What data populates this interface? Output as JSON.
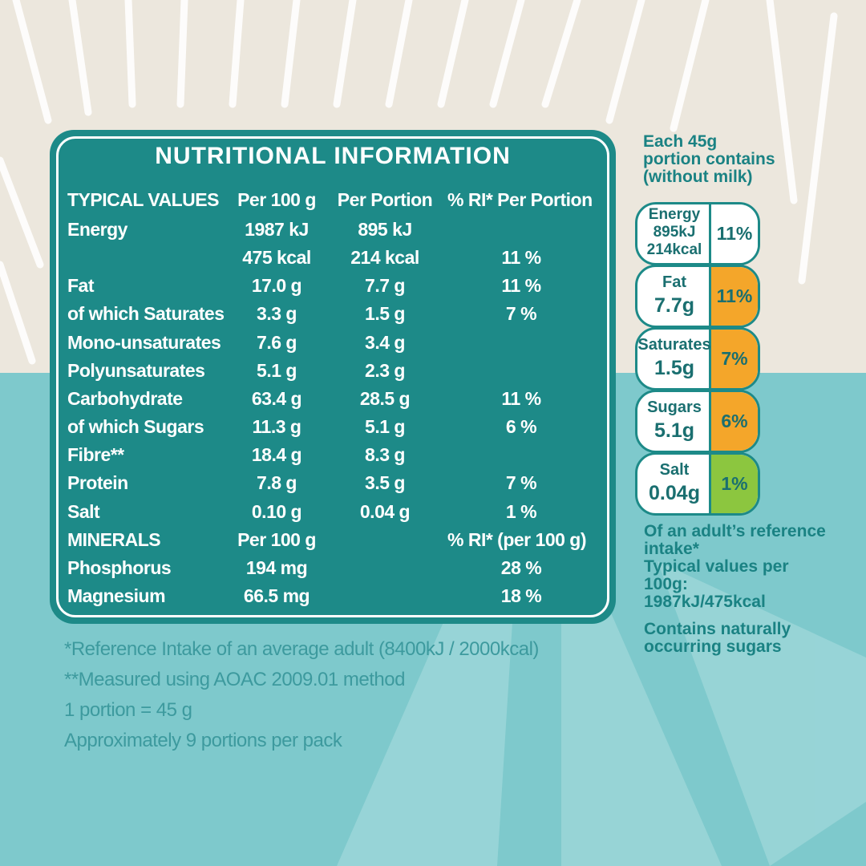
{
  "panel": {
    "title": "NUTRITIONAL INFORMATION",
    "header": [
      "TYPICAL VALUES",
      "Per 100 g",
      "Per Portion",
      "% RI* Per Portion"
    ],
    "rows": [
      {
        "label": "Energy",
        "per100": "1987 kJ",
        "portion": "895 kJ"
      },
      {
        "per100": "475 kcal",
        "portion": "214 kcal",
        "ri": "11 %"
      },
      {
        "label": "Fat",
        "per100": "17.0 g",
        "portion": "7.7 g",
        "ri": "11 %"
      },
      {
        "label": "of which Saturates",
        "per100": "3.3 g",
        "portion": "1.5 g",
        "ri": "7 %"
      },
      {
        "label": "Mono-unsaturates",
        "per100": "7.6 g",
        "portion": "3.4 g"
      },
      {
        "label": "Polyunsaturates",
        "per100": "5.1 g",
        "portion": "2.3 g"
      },
      {
        "label": "Carbohydrate",
        "per100": "63.4 g",
        "portion": "28.5 g",
        "ri": "11 %"
      },
      {
        "label": "of which Sugars",
        "per100": "11.3 g",
        "portion": "5.1 g",
        "ri": "6 %"
      },
      {
        "label": "Fibre**",
        "per100": "18.4 g",
        "portion": "8.3 g"
      },
      {
        "label": "Protein",
        "per100": "7.8 g",
        "portion": "3.5 g",
        "ri": "7 %"
      },
      {
        "label": "Salt",
        "per100": "0.10 g",
        "portion": "0.04 g",
        "ri": "1 %"
      }
    ],
    "minerals_header": {
      "label": "MINERALS",
      "per100": "Per 100 g",
      "ri": "% RI* (per 100 g)"
    },
    "minerals": [
      {
        "label": "Phosphorus",
        "per100": "194 mg",
        "ri": "28 %"
      },
      {
        "label": "Magnesium",
        "per100": "66.5 mg",
        "ri": "18 %"
      }
    ]
  },
  "footnotes": [
    "*Reference Intake of an average adult (8400kJ / 2000kcal)",
    "**Measured using AOAC 2009.01 method",
    "1 portion = 45 g",
    "Approximately 9 portions per pack"
  ],
  "side": {
    "intro": [
      "Each 45g",
      "portion contains",
      "(without milk)"
    ],
    "lights": [
      {
        "name": "Energy",
        "amount": [
          "895kJ",
          "214kcal"
        ],
        "ri": "11%",
        "color": "#ffffff"
      },
      {
        "name": "Fat",
        "amount": [
          "7.7g"
        ],
        "ri": "11%",
        "color": "#f4a62a"
      },
      {
        "name": "Saturates",
        "amount": [
          "1.5g"
        ],
        "ri": "7%",
        "color": "#f4a62a"
      },
      {
        "name": "Sugars",
        "amount": [
          "5.1g"
        ],
        "ri": "6%",
        "color": "#f4a62a"
      },
      {
        "name": "Salt",
        "amount": [
          "0.04g"
        ],
        "ri": "1%",
        "color": "#8cc63f"
      }
    ],
    "notes": [
      "Of an adult’s reference",
      "intake*",
      "Typical values per",
      "100g:",
      "1987kJ/475kcal",
      "Contains naturally",
      "occurring sugars"
    ]
  }
}
